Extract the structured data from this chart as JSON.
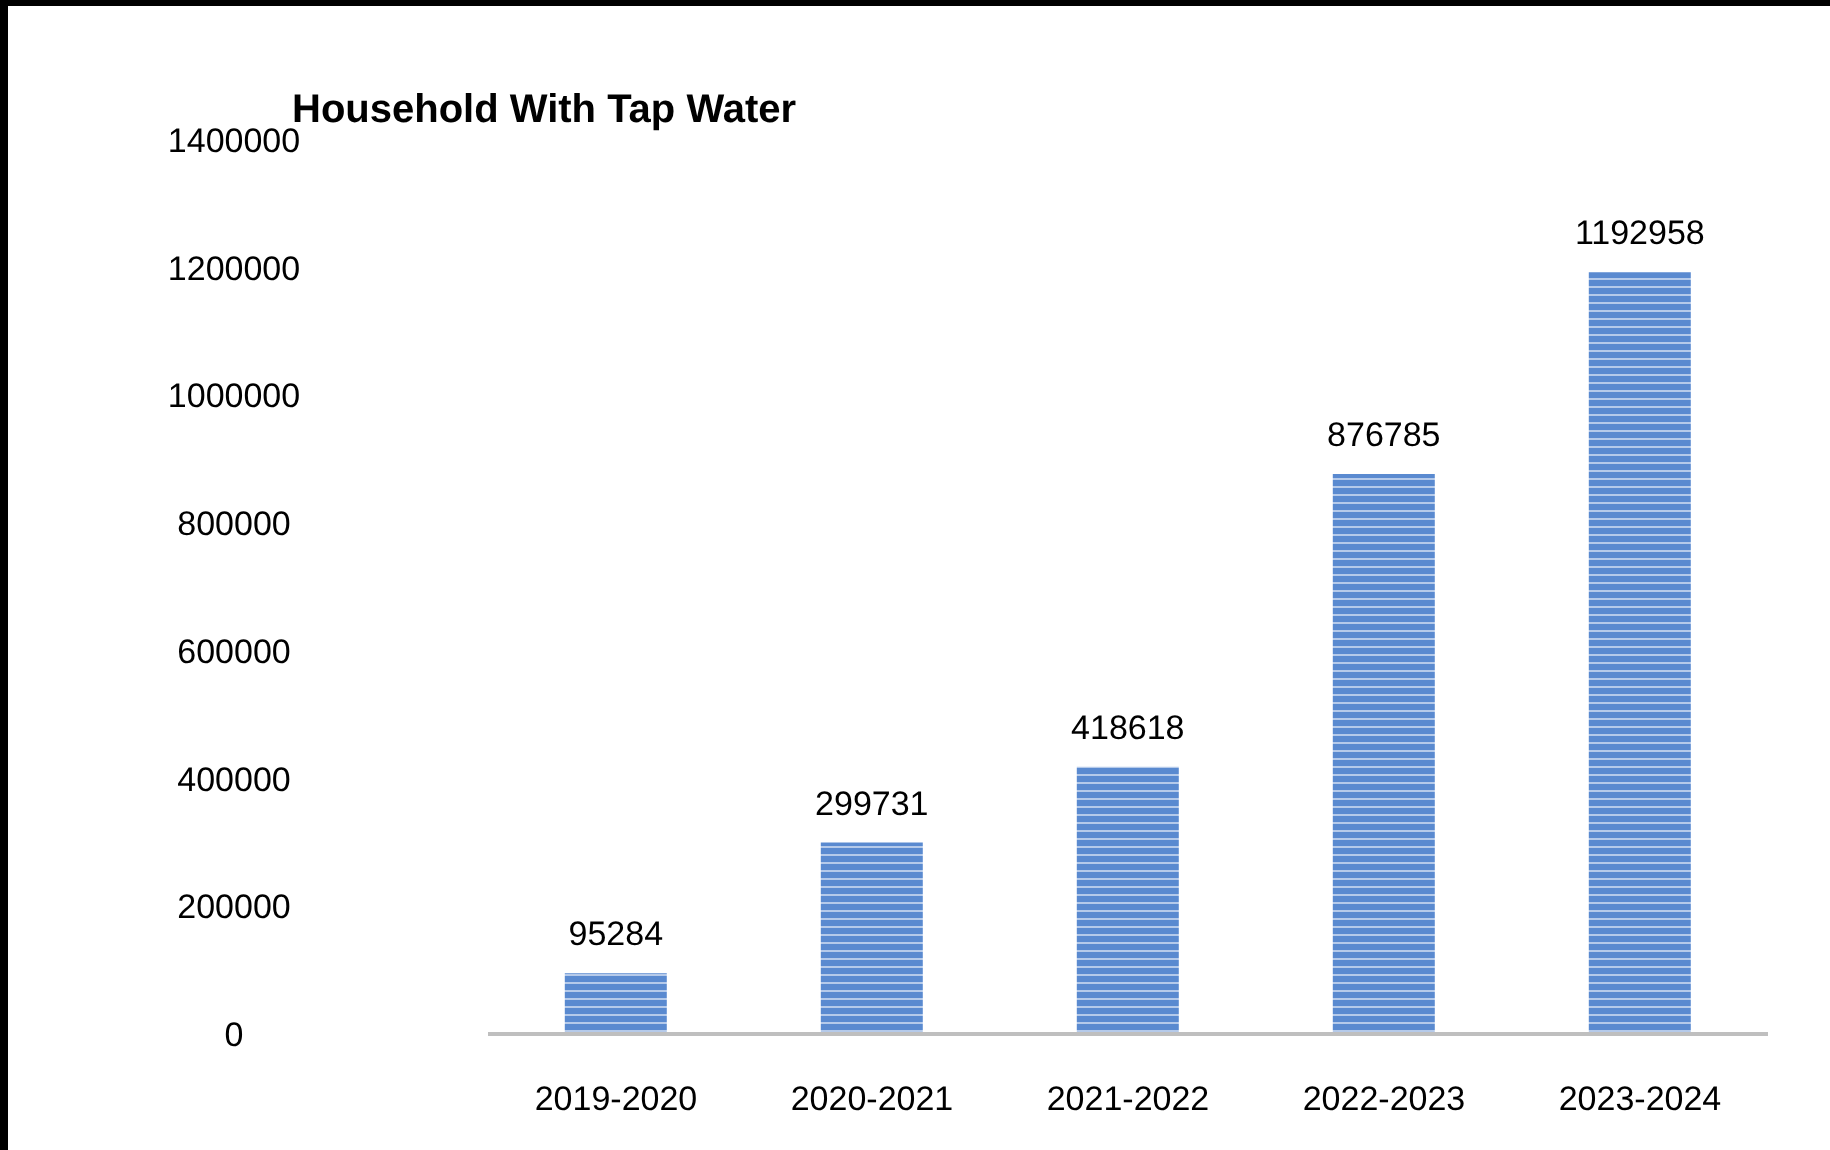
{
  "chart_data": {
    "type": "bar",
    "title": "Household With Tap Water",
    "categories": [
      "2019-2020",
      "2020-2021",
      "2021-2022",
      "2022-2023",
      "2023-2024"
    ],
    "values": [
      95284,
      299731,
      418618,
      876785,
      1192958
    ],
    "color": "#5a8ad0",
    "ylim": [
      0,
      1400000
    ],
    "yticks": [
      0,
      200000,
      400000,
      600000,
      800000,
      1000000,
      1200000,
      1400000
    ],
    "grid": false,
    "legend": false,
    "data_labels": true
  }
}
